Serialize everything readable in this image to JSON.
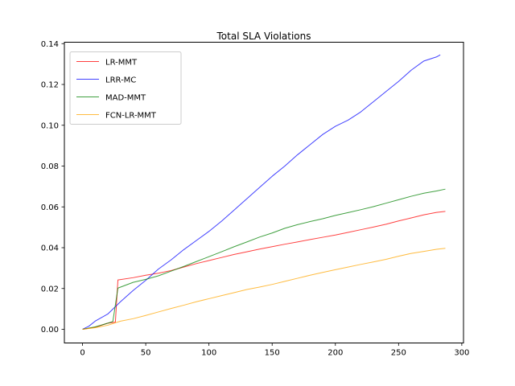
{
  "chart_data": {
    "type": "line",
    "title": "Total SLA Violations",
    "xlabel": "",
    "ylabel": "",
    "xlim": [
      -14.35,
      301.35
    ],
    "ylim": [
      -0.0067,
      0.1407
    ],
    "xticks": [
      0,
      50,
      100,
      150,
      200,
      250,
      300
    ],
    "xtick_labels": [
      "0",
      "50",
      "100",
      "150",
      "200",
      "250",
      "300"
    ],
    "yticks": [
      0.0,
      0.02,
      0.04,
      0.06,
      0.08,
      0.1,
      0.12,
      0.14
    ],
    "ytick_labels": [
      "0.00",
      "0.02",
      "0.04",
      "0.06",
      "0.08",
      "0.10",
      "0.12",
      "0.14"
    ],
    "grid": false,
    "legend_position": "top-left",
    "series": [
      {
        "name": "LR-MMT",
        "color": "#ff0000",
        "points": [
          [
            0,
            0
          ],
          [
            10,
            0.001
          ],
          [
            20,
            0.003
          ],
          [
            26,
            0.0035
          ],
          [
            28,
            0.0242
          ],
          [
            40,
            0.0253
          ],
          [
            50,
            0.0265
          ],
          [
            60,
            0.0275
          ],
          [
            70,
            0.0288
          ],
          [
            80,
            0.0305
          ],
          [
            90,
            0.0322
          ],
          [
            100,
            0.0337
          ],
          [
            110,
            0.0352
          ],
          [
            120,
            0.0367
          ],
          [
            130,
            0.038
          ],
          [
            140,
            0.0393
          ],
          [
            150,
            0.0405
          ],
          [
            160,
            0.0417
          ],
          [
            170,
            0.0428
          ],
          [
            180,
            0.044
          ],
          [
            190,
            0.0451
          ],
          [
            200,
            0.0462
          ],
          [
            210,
            0.0475
          ],
          [
            220,
            0.0488
          ],
          [
            230,
            0.0501
          ],
          [
            240,
            0.0515
          ],
          [
            250,
            0.0531
          ],
          [
            260,
            0.0546
          ],
          [
            270,
            0.0561
          ],
          [
            280,
            0.0573
          ],
          [
            287,
            0.0578
          ]
        ]
      },
      {
        "name": "LRR-MC",
        "color": "#0000ff",
        "points": [
          [
            0,
            0
          ],
          [
            5,
            0.0015
          ],
          [
            10,
            0.004
          ],
          [
            20,
            0.0075
          ],
          [
            30,
            0.0135
          ],
          [
            40,
            0.019
          ],
          [
            50,
            0.024
          ],
          [
            60,
            0.0295
          ],
          [
            70,
            0.034
          ],
          [
            80,
            0.039
          ],
          [
            90,
            0.0435
          ],
          [
            100,
            0.048
          ],
          [
            110,
            0.053
          ],
          [
            120,
            0.0585
          ],
          [
            130,
            0.064
          ],
          [
            140,
            0.0695
          ],
          [
            150,
            0.075
          ],
          [
            160,
            0.08
          ],
          [
            170,
            0.0855
          ],
          [
            180,
            0.0905
          ],
          [
            190,
            0.0955
          ],
          [
            200,
            0.0995
          ],
          [
            210,
            0.1025
          ],
          [
            220,
            0.1065
          ],
          [
            230,
            0.1115
          ],
          [
            240,
            0.1165
          ],
          [
            250,
            0.1215
          ],
          [
            260,
            0.127
          ],
          [
            270,
            0.1315
          ],
          [
            280,
            0.1335
          ],
          [
            283,
            0.1345
          ]
        ]
      },
      {
        "name": "MAD-MMT",
        "color": "#008000",
        "points": [
          [
            0,
            0
          ],
          [
            10,
            0.0012
          ],
          [
            20,
            0.003
          ],
          [
            24,
            0.0038
          ],
          [
            28,
            0.0202
          ],
          [
            40,
            0.023
          ],
          [
            50,
            0.0245
          ],
          [
            60,
            0.0262
          ],
          [
            70,
            0.0285
          ],
          [
            80,
            0.0308
          ],
          [
            90,
            0.0332
          ],
          [
            100,
            0.0356
          ],
          [
            110,
            0.038
          ],
          [
            120,
            0.0405
          ],
          [
            130,
            0.0428
          ],
          [
            140,
            0.0452
          ],
          [
            150,
            0.0472
          ],
          [
            160,
            0.0495
          ],
          [
            170,
            0.0513
          ],
          [
            180,
            0.0528
          ],
          [
            190,
            0.0542
          ],
          [
            200,
            0.0558
          ],
          [
            210,
            0.0572
          ],
          [
            220,
            0.0586
          ],
          [
            230,
            0.0601
          ],
          [
            240,
            0.0618
          ],
          [
            250,
            0.0635
          ],
          [
            260,
            0.0652
          ],
          [
            270,
            0.0667
          ],
          [
            280,
            0.0678
          ],
          [
            287,
            0.0687
          ]
        ]
      },
      {
        "name": "FCN-LR-MMT",
        "color": "#ffa500",
        "points": [
          [
            0,
            0
          ],
          [
            10,
            0.0008
          ],
          [
            20,
            0.002
          ],
          [
            30,
            0.004
          ],
          [
            40,
            0.0052
          ],
          [
            50,
            0.0068
          ],
          [
            60,
            0.0085
          ],
          [
            70,
            0.0102
          ],
          [
            80,
            0.0118
          ],
          [
            90,
            0.0135
          ],
          [
            100,
            0.015
          ],
          [
            110,
            0.0165
          ],
          [
            120,
            0.018
          ],
          [
            130,
            0.0195
          ],
          [
            140,
            0.0207
          ],
          [
            150,
            0.022
          ],
          [
            160,
            0.0235
          ],
          [
            170,
            0.025
          ],
          [
            180,
            0.0265
          ],
          [
            190,
            0.0279
          ],
          [
            200,
            0.0292
          ],
          [
            210,
            0.0305
          ],
          [
            220,
            0.0318
          ],
          [
            230,
            0.033
          ],
          [
            240,
            0.0343
          ],
          [
            250,
            0.0358
          ],
          [
            260,
            0.0372
          ],
          [
            270,
            0.0382
          ],
          [
            280,
            0.0392
          ],
          [
            287,
            0.0397
          ]
        ]
      }
    ]
  }
}
